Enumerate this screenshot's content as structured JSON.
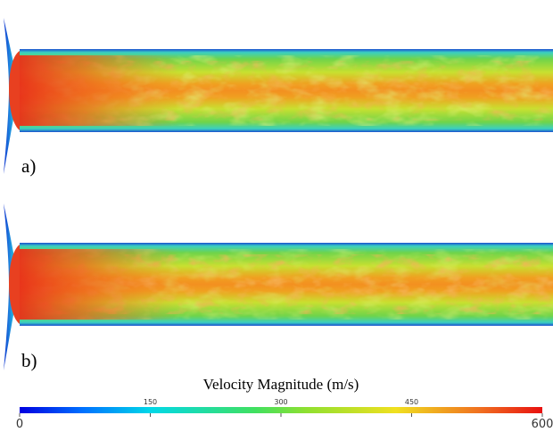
{
  "panels": [
    {
      "label": "a)"
    },
    {
      "label": "b)"
    }
  ],
  "colorbar": {
    "title": "Velocity Magnitude (m/s)",
    "range": [
      0,
      600
    ],
    "ticks": [
      0,
      150,
      300,
      450,
      600
    ]
  }
}
